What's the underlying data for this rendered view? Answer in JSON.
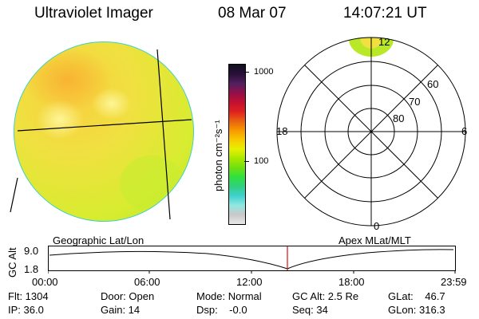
{
  "header": {
    "instrument": "Ultraviolet Imager",
    "date": "08 Mar 07",
    "time": "14:07:21 UT"
  },
  "colorbar": {
    "unit": "photon cm⁻²s⁻¹",
    "ticks": [
      "1000",
      "100"
    ],
    "colors": [
      "#e8e8e8",
      "#c8c8c8",
      "#90e8e0",
      "#40d0d0",
      "#30d080",
      "#30e040",
      "#70e010",
      "#a8e800",
      "#e8f000",
      "#f8c800",
      "#f89800",
      "#e86010",
      "#e02020",
      "#c01030",
      "#90104a",
      "#502060",
      "#2a1038",
      "#101020"
    ]
  },
  "polar_plot": {
    "mlt_labels": {
      "top": "12",
      "left": "18",
      "right": "6",
      "bottom": "0"
    },
    "lat_labels": [
      "60",
      "70",
      "80"
    ]
  },
  "timeline": {
    "left_title": "Geographic Lat/Lon",
    "right_title": "Apex MLat/MLT",
    "ylabel": "GC Alt",
    "y_ticks": [
      "9.0",
      "1.8"
    ],
    "x_ticks": [
      "00:00",
      "06:00",
      "12:00",
      "18:00",
      "23:59"
    ],
    "current_marker_time": "14:07:21",
    "marker_color": "#d01010"
  },
  "info": {
    "flt": "Flt: 1304",
    "ip": "IP: 36.0",
    "door": "Door: Open",
    "gain": "Gain: 14",
    "mode": "Mode: Normal",
    "dsp": "Dsp:    -0.0",
    "gcalt": "GC Alt: 2.5 Re",
    "seq": "Seq: 34",
    "glat": "GLat:    46.7",
    "glon": "GLon: 316.3"
  }
}
